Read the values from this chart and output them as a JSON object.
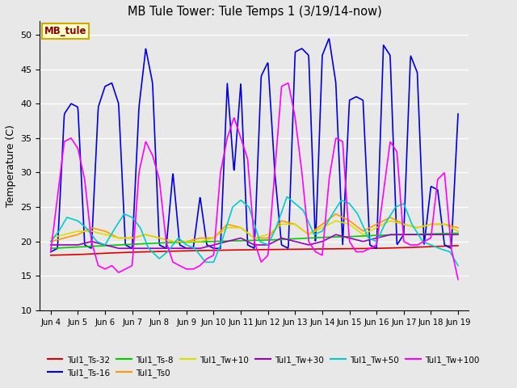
{
  "title": "MB Tule Tower: Tule Temps 1 (3/19/14-now)",
  "ylabel": "Temperature (C)",
  "ylim": [
    10,
    52
  ],
  "yticks": [
    10,
    15,
    20,
    25,
    30,
    35,
    40,
    45,
    50
  ],
  "bg_color": "#e8e8e8",
  "grid_color": "#ffffff",
  "xtick_labels": [
    "Jun 4",
    "Jun 5",
    "Jun 6",
    "Jun 7",
    "Jun 8",
    "Jun 9",
    "Jun 10",
    "Jun 11",
    "Jun 12",
    "Jun 13",
    "Jun 14",
    "Jun 15",
    "Jun 16",
    "Jun 17",
    "Jun 18",
    "Jun 19"
  ],
  "annotation_text": "MB_tule",
  "series_colors": {
    "Tul1_Ts-32": "#dd0000",
    "Tul1_Ts-16": "#0000dd",
    "Tul1_Ts-8": "#00cc00",
    "Tul1_Ts0": "#ff9900",
    "Tul1_Tw+10": "#dddd00",
    "Tul1_Tw+30": "#9900bb",
    "Tul1_Tw+50": "#00cccc",
    "Tul1_Tw+100": "#ff00ff"
  },
  "red": {
    "x": [
      0,
      1,
      2,
      3,
      4,
      5,
      6,
      7,
      8,
      9,
      10,
      11,
      12,
      13,
      14,
      15
    ],
    "y": [
      18.0,
      18.1,
      18.3,
      18.45,
      18.55,
      18.65,
      18.72,
      18.78,
      18.83,
      18.88,
      18.92,
      18.95,
      19.0,
      19.1,
      19.25,
      19.4
    ]
  },
  "blue": {
    "x": [
      0,
      0.25,
      0.5,
      0.75,
      1.0,
      1.25,
      1.5,
      1.75,
      2.0,
      2.25,
      2.5,
      2.75,
      3.0,
      3.25,
      3.5,
      3.75,
      4.0,
      4.25,
      4.5,
      4.75,
      5.0,
      5.25,
      5.5,
      5.75,
      6.0,
      6.25,
      6.5,
      6.75,
      7.0,
      7.25,
      7.5,
      7.75,
      8.0,
      8.25,
      8.5,
      8.75,
      9.0,
      9.25,
      9.5,
      9.75,
      10.0,
      10.25,
      10.5,
      10.75,
      11.0,
      11.25,
      11.5,
      11.75,
      12.0,
      12.25,
      12.5,
      12.75,
      13.0,
      13.25,
      13.5,
      13.75,
      14.0,
      14.25,
      14.5,
      14.75,
      15.0
    ],
    "y": [
      18.5,
      19.0,
      38.5,
      40.0,
      39.5,
      19.5,
      19.0,
      39.5,
      42.5,
      43.0,
      40.0,
      19.5,
      19.0,
      39.5,
      48.0,
      43.0,
      19.5,
      19.0,
      30.0,
      19.5,
      19.0,
      19.0,
      26.5,
      19.5,
      19.0,
      19.0,
      43.0,
      30.0,
      43.0,
      19.5,
      19.0,
      44.0,
      46.0,
      30.0,
      19.5,
      19.0,
      47.5,
      48.0,
      47.0,
      19.5,
      47.0,
      49.5,
      43.0,
      19.5,
      40.5,
      41.0,
      40.5,
      19.5,
      19.0,
      48.5,
      47.0,
      19.5,
      21.0,
      47.0,
      44.5,
      19.5,
      28.0,
      27.5,
      19.5,
      19.0,
      38.5
    ]
  },
  "green": {
    "x": [
      0,
      1,
      2,
      3,
      4,
      5,
      6,
      7,
      8,
      9,
      10,
      11,
      12,
      13,
      14,
      15
    ],
    "y": [
      19.0,
      19.2,
      19.4,
      19.6,
      19.8,
      19.9,
      20.0,
      20.1,
      20.2,
      20.4,
      20.6,
      20.7,
      20.9,
      21.0,
      21.1,
      21.2
    ]
  },
  "orange": {
    "x": [
      0,
      0.5,
      1.0,
      1.5,
      2.0,
      2.5,
      3.0,
      3.5,
      4.0,
      4.5,
      5.0,
      5.5,
      6.0,
      6.5,
      7.0,
      7.5,
      8.0,
      8.5,
      9.0,
      9.5,
      10.0,
      10.5,
      11.0,
      11.5,
      12.0,
      12.5,
      13.0,
      13.5,
      14.0,
      14.5,
      15.0
    ],
    "y": [
      20.0,
      20.5,
      21.0,
      22.0,
      21.5,
      20.5,
      20.5,
      21.0,
      20.5,
      20.0,
      20.0,
      20.5,
      20.5,
      22.5,
      22.0,
      20.5,
      20.5,
      23.0,
      22.5,
      21.0,
      22.5,
      24.0,
      23.0,
      21.5,
      22.5,
      23.5,
      22.5,
      22.0,
      22.5,
      22.5,
      22.0
    ]
  },
  "yellow": {
    "x": [
      0,
      0.5,
      1.0,
      1.5,
      2.0,
      2.5,
      3.0,
      3.5,
      4.0,
      4.5,
      5.0,
      5.5,
      6.0,
      6.5,
      7.0,
      7.5,
      8.0,
      8.5,
      9.0,
      9.5,
      10.0,
      10.5,
      11.0,
      11.5,
      12.0,
      12.5,
      13.0,
      13.5,
      14.0,
      14.5,
      15.0
    ],
    "y": [
      20.5,
      21.0,
      21.5,
      21.5,
      21.0,
      20.5,
      20.5,
      21.0,
      20.5,
      20.0,
      20.0,
      20.0,
      20.5,
      22.0,
      22.0,
      20.5,
      21.0,
      22.5,
      22.5,
      21.0,
      22.0,
      23.0,
      22.5,
      21.0,
      22.0,
      23.0,
      22.5,
      22.0,
      22.5,
      22.5,
      21.5
    ]
  },
  "purple": {
    "x": [
      0,
      0.5,
      1.0,
      1.5,
      2.0,
      2.5,
      3.0,
      3.5,
      4.0,
      4.5,
      5.0,
      5.5,
      6.0,
      6.5,
      7.0,
      7.5,
      8.0,
      8.5,
      9.0,
      9.5,
      10.0,
      10.5,
      11.0,
      11.5,
      12.0,
      12.5,
      13.0,
      13.5,
      14.0,
      14.5,
      15.0
    ],
    "y": [
      19.5,
      19.5,
      19.5,
      20.0,
      19.5,
      19.0,
      19.0,
      19.0,
      19.0,
      19.0,
      19.0,
      19.0,
      19.5,
      20.0,
      20.5,
      19.5,
      19.5,
      20.5,
      20.0,
      19.5,
      20.0,
      21.0,
      20.5,
      20.0,
      20.5,
      21.0,
      21.0,
      21.0,
      21.0,
      21.0,
      21.0
    ]
  },
  "cyan": {
    "x": [
      0,
      0.3,
      0.6,
      1.0,
      1.3,
      1.7,
      2.0,
      2.3,
      2.7,
      3.0,
      3.3,
      3.6,
      4.0,
      4.3,
      4.7,
      5.0,
      5.3,
      5.7,
      6.0,
      6.3,
      6.7,
      7.0,
      7.3,
      7.7,
      8.0,
      8.3,
      8.7,
      9.0,
      9.3,
      9.7,
      10.0,
      10.3,
      10.7,
      11.0,
      11.3,
      11.7,
      12.0,
      12.3,
      12.7,
      13.0,
      13.3,
      13.7,
      14.0,
      14.3,
      14.7,
      15.0
    ],
    "y": [
      20.0,
      21.5,
      23.5,
      23.0,
      22.0,
      20.0,
      19.5,
      21.5,
      24.0,
      23.5,
      22.0,
      19.0,
      17.5,
      18.5,
      20.5,
      19.5,
      19.0,
      17.0,
      17.0,
      20.0,
      25.0,
      26.0,
      25.0,
      20.0,
      19.5,
      22.0,
      26.5,
      25.5,
      24.5,
      21.0,
      21.5,
      23.5,
      26.0,
      25.5,
      24.0,
      20.5,
      20.0,
      22.5,
      25.0,
      25.5,
      22.5,
      20.0,
      19.5,
      19.0,
      18.5,
      16.5
    ]
  },
  "magenta": {
    "x": [
      0,
      0.25,
      0.5,
      0.75,
      1.0,
      1.25,
      1.5,
      1.75,
      2.0,
      2.25,
      2.5,
      2.75,
      3.0,
      3.25,
      3.5,
      3.75,
      4.0,
      4.25,
      4.5,
      4.75,
      5.0,
      5.25,
      5.5,
      5.75,
      6.0,
      6.25,
      6.5,
      6.75,
      7.0,
      7.25,
      7.5,
      7.75,
      8.0,
      8.25,
      8.5,
      8.75,
      9.0,
      9.25,
      9.5,
      9.75,
      10.0,
      10.25,
      10.5,
      10.75,
      11.0,
      11.25,
      11.5,
      11.75,
      12.0,
      12.25,
      12.5,
      12.75,
      13.0,
      13.25,
      13.5,
      13.75,
      14.0,
      14.25,
      14.5,
      14.75,
      15.0
    ],
    "y": [
      18.5,
      26.5,
      34.5,
      35.0,
      33.5,
      29.0,
      20.0,
      16.5,
      16.0,
      16.5,
      15.5,
      16.0,
      16.5,
      30.0,
      34.5,
      32.5,
      29.0,
      20.0,
      17.0,
      16.5,
      16.0,
      16.0,
      16.5,
      17.5,
      18.0,
      30.0,
      35.0,
      38.0,
      35.0,
      32.0,
      20.0,
      17.0,
      18.0,
      30.0,
      42.5,
      43.0,
      38.0,
      30.0,
      20.0,
      18.5,
      18.0,
      29.0,
      35.0,
      34.5,
      20.0,
      18.5,
      18.5,
      19.0,
      19.5,
      27.0,
      34.5,
      33.0,
      20.0,
      19.5,
      19.5,
      20.0,
      20.5,
      29.0,
      30.0,
      19.0,
      14.5
    ]
  }
}
